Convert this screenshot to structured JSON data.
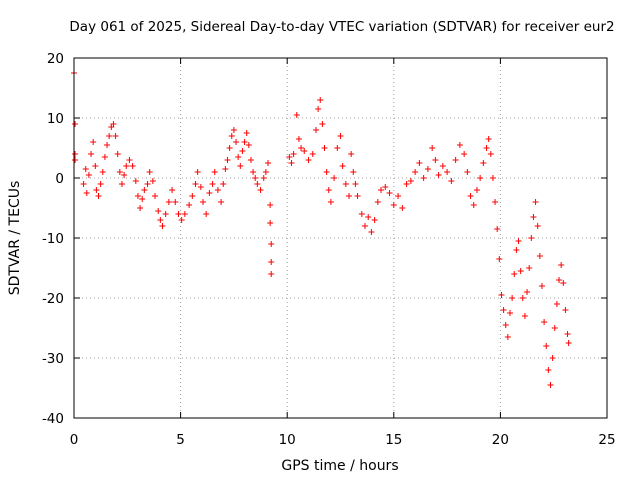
{
  "chart_data": {
    "type": "scatter",
    "title": "Day 061 of 2025, Sidereal Day-to-day VTEC variation (SDTVAR) for receiver eur2",
    "xlabel": "GPS time / hours",
    "ylabel": "SDTVAR / TECUs",
    "xlim": [
      0,
      25
    ],
    "ylim": [
      -40,
      20
    ],
    "xticks": [
      0,
      5,
      10,
      15,
      20,
      25
    ],
    "yticks": [
      -40,
      -30,
      -20,
      -10,
      0,
      10,
      20
    ],
    "xtick_labels": [
      "0",
      "5",
      "10",
      "15",
      "20",
      "25"
    ],
    "ytick_labels": [
      "-40",
      "-30",
      "-20",
      "-10",
      "0",
      "10",
      "20"
    ],
    "grid": true,
    "marker": "plus",
    "color": "#ff0000",
    "points": [
      [
        0.0,
        17.5
      ],
      [
        0.05,
        9.0
      ],
      [
        0.05,
        4.0
      ],
      [
        0.05,
        3.0
      ],
      [
        0.45,
        -1.0
      ],
      [
        0.55,
        1.5
      ],
      [
        0.6,
        -2.5
      ],
      [
        0.7,
        0.5
      ],
      [
        0.8,
        4.0
      ],
      [
        0.9,
        6.0
      ],
      [
        1.0,
        2.0
      ],
      [
        1.05,
        -2.0
      ],
      [
        1.15,
        -3.0
      ],
      [
        1.25,
        -1.0
      ],
      [
        1.35,
        1.0
      ],
      [
        1.45,
        3.5
      ],
      [
        1.55,
        5.5
      ],
      [
        1.65,
        7.0
      ],
      [
        1.75,
        8.5
      ],
      [
        1.85,
        9.0
      ],
      [
        1.95,
        7.0
      ],
      [
        2.05,
        4.0
      ],
      [
        2.15,
        1.0
      ],
      [
        2.25,
        -1.0
      ],
      [
        2.35,
        0.5
      ],
      [
        2.45,
        2.0
      ],
      [
        2.6,
        3.0
      ],
      [
        2.75,
        2.0
      ],
      [
        2.9,
        -0.5
      ],
      [
        3.0,
        -3.0
      ],
      [
        3.1,
        -5.0
      ],
      [
        3.2,
        -3.5
      ],
      [
        3.3,
        -2.0
      ],
      [
        3.45,
        -1.0
      ],
      [
        3.55,
        1.0
      ],
      [
        3.7,
        -0.5
      ],
      [
        3.8,
        -3.0
      ],
      [
        3.95,
        -5.5
      ],
      [
        4.05,
        -7.0
      ],
      [
        4.15,
        -8.0
      ],
      [
        4.3,
        -6.0
      ],
      [
        4.45,
        -4.0
      ],
      [
        4.6,
        -2.0
      ],
      [
        4.75,
        -4.0
      ],
      [
        4.9,
        -6.0
      ],
      [
        5.05,
        -7.0
      ],
      [
        5.2,
        -6.0
      ],
      [
        5.4,
        -4.5
      ],
      [
        5.55,
        -3.0
      ],
      [
        5.7,
        -1.0
      ],
      [
        5.8,
        1.0
      ],
      [
        5.95,
        -1.5
      ],
      [
        6.05,
        -4.0
      ],
      [
        6.2,
        -6.0
      ],
      [
        6.35,
        -2.5
      ],
      [
        6.5,
        -1.0
      ],
      [
        6.6,
        1.0
      ],
      [
        6.75,
        -2.0
      ],
      [
        6.9,
        -4.0
      ],
      [
        7.0,
        -1.0
      ],
      [
        7.1,
        1.5
      ],
      [
        7.2,
        3.0
      ],
      [
        7.3,
        5.0
      ],
      [
        7.4,
        7.0
      ],
      [
        7.5,
        8.0
      ],
      [
        7.6,
        6.0
      ],
      [
        7.7,
        3.5
      ],
      [
        7.8,
        2.0
      ],
      [
        7.9,
        4.5
      ],
      [
        8.0,
        6.0
      ],
      [
        8.1,
        7.5
      ],
      [
        8.2,
        5.5
      ],
      [
        8.3,
        3.0
      ],
      [
        8.4,
        1.0
      ],
      [
        8.5,
        0.0
      ],
      [
        8.6,
        -1.0
      ],
      [
        8.75,
        -2.0
      ],
      [
        8.9,
        0.0
      ],
      [
        9.0,
        1.0
      ],
      [
        9.1,
        2.5
      ],
      [
        9.2,
        -4.5
      ],
      [
        9.2,
        -7.5
      ],
      [
        9.25,
        -11.0
      ],
      [
        9.25,
        -14.0
      ],
      [
        9.25,
        -16.0
      ],
      [
        10.1,
        3.5
      ],
      [
        10.2,
        2.5
      ],
      [
        10.3,
        4.0
      ],
      [
        10.45,
        10.5
      ],
      [
        10.55,
        6.5
      ],
      [
        10.65,
        5.0
      ],
      [
        10.8,
        4.5
      ],
      [
        11.0,
        3.0
      ],
      [
        11.2,
        4.0
      ],
      [
        11.35,
        8.0
      ],
      [
        11.45,
        11.5
      ],
      [
        11.55,
        13.0
      ],
      [
        11.65,
        9.0
      ],
      [
        11.75,
        5.0
      ],
      [
        11.85,
        1.0
      ],
      [
        11.95,
        -2.0
      ],
      [
        12.05,
        -4.0
      ],
      [
        12.2,
        0.0
      ],
      [
        12.35,
        5.0
      ],
      [
        12.5,
        7.0
      ],
      [
        12.6,
        2.0
      ],
      [
        12.75,
        -1.0
      ],
      [
        12.9,
        -3.0
      ],
      [
        13.0,
        4.0
      ],
      [
        13.1,
        1.0
      ],
      [
        13.2,
        -1.0
      ],
      [
        13.3,
        -3.0
      ],
      [
        13.5,
        -6.0
      ],
      [
        13.65,
        -8.0
      ],
      [
        13.8,
        -6.5
      ],
      [
        13.95,
        -9.0
      ],
      [
        14.1,
        -7.0
      ],
      [
        14.25,
        -4.0
      ],
      [
        14.4,
        -2.0
      ],
      [
        14.6,
        -1.5
      ],
      [
        14.8,
        -2.5
      ],
      [
        15.0,
        -4.5
      ],
      [
        15.2,
        -3.0
      ],
      [
        15.4,
        -5.0
      ],
      [
        15.6,
        -1.0
      ],
      [
        15.8,
        -0.5
      ],
      [
        16.0,
        1.0
      ],
      [
        16.2,
        2.5
      ],
      [
        16.4,
        0.0
      ],
      [
        16.6,
        1.5
      ],
      [
        16.8,
        5.0
      ],
      [
        16.95,
        3.0
      ],
      [
        17.1,
        0.5
      ],
      [
        17.3,
        2.0
      ],
      [
        17.5,
        1.0
      ],
      [
        17.7,
        -0.5
      ],
      [
        17.9,
        3.0
      ],
      [
        18.1,
        5.5
      ],
      [
        18.3,
        4.0
      ],
      [
        18.45,
        1.0
      ],
      [
        18.6,
        -3.0
      ],
      [
        18.75,
        -4.5
      ],
      [
        18.9,
        -2.0
      ],
      [
        19.05,
        0.0
      ],
      [
        19.2,
        2.5
      ],
      [
        19.35,
        5.0
      ],
      [
        19.45,
        6.5
      ],
      [
        19.55,
        4.0
      ],
      [
        19.65,
        0.0
      ],
      [
        19.75,
        -4.0
      ],
      [
        19.85,
        -8.5
      ],
      [
        19.95,
        -13.5
      ],
      [
        20.05,
        -19.5
      ],
      [
        20.15,
        -22.0
      ],
      [
        20.25,
        -24.5
      ],
      [
        20.35,
        -26.5
      ],
      [
        20.45,
        -22.5
      ],
      [
        20.55,
        -20.0
      ],
      [
        20.65,
        -16.0
      ],
      [
        20.75,
        -12.0
      ],
      [
        20.85,
        -10.5
      ],
      [
        20.95,
        -15.5
      ],
      [
        21.05,
        -20.0
      ],
      [
        21.15,
        -23.0
      ],
      [
        21.25,
        -19.0
      ],
      [
        21.35,
        -15.0
      ],
      [
        21.45,
        -10.0
      ],
      [
        21.55,
        -6.5
      ],
      [
        21.65,
        -4.0
      ],
      [
        21.75,
        -8.0
      ],
      [
        21.85,
        -13.0
      ],
      [
        21.95,
        -18.0
      ],
      [
        22.05,
        -24.0
      ],
      [
        22.15,
        -28.0
      ],
      [
        22.25,
        -32.0
      ],
      [
        22.35,
        -34.5
      ],
      [
        22.45,
        -30.0
      ],
      [
        22.55,
        -25.0
      ],
      [
        22.65,
        -21.0
      ],
      [
        22.75,
        -17.0
      ],
      [
        22.85,
        -14.5
      ],
      [
        22.95,
        -17.5
      ],
      [
        23.05,
        -22.0
      ],
      [
        23.15,
        -26.0
      ],
      [
        23.2,
        -27.5
      ]
    ]
  }
}
